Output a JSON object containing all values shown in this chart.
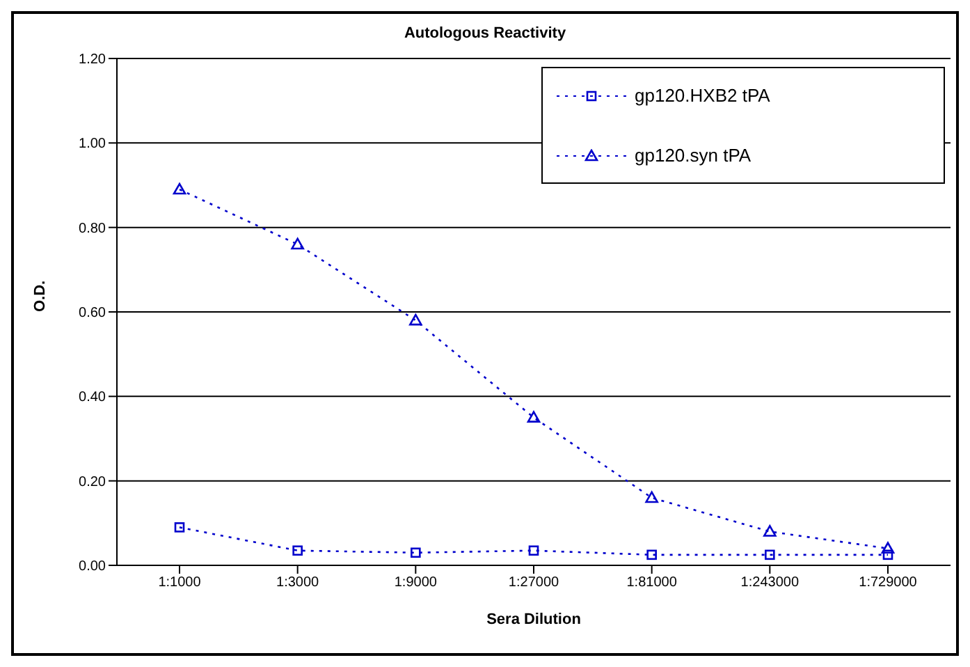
{
  "chart_data": {
    "type": "line",
    "title": "Autologous Reactivity",
    "xlabel": "Sera Dilution",
    "ylabel": "O.D.",
    "categories": [
      "1:1000",
      "1:3000",
      "1:9000",
      "1:27000",
      "1:81000",
      "1:243000",
      "1:729000"
    ],
    "series": [
      {
        "name": "gp120.HXB2 tPA",
        "color": "#0000cc",
        "marker": "square",
        "values": [
          0.09,
          0.035,
          0.03,
          0.035,
          0.025,
          0.025,
          0.025
        ]
      },
      {
        "name": "gp120.syn tPA",
        "color": "#0000cc",
        "marker": "triangle",
        "values": [
          0.89,
          0.76,
          0.58,
          0.35,
          0.16,
          0.08,
          0.04
        ]
      }
    ],
    "ylim": [
      0,
      1.2
    ],
    "yticks": [
      {
        "value": 0,
        "label": "0.00"
      },
      {
        "value": 0.2,
        "label": "0.20"
      },
      {
        "value": 0.4,
        "label": "0.40"
      },
      {
        "value": 0.6,
        "label": "0.60"
      },
      {
        "value": 0.8,
        "label": "0.80"
      },
      {
        "value": 1.0,
        "label": "1.00"
      },
      {
        "value": 1.2,
        "label": "1.20"
      }
    ],
    "grid": "y",
    "legend": "top right",
    "line_style": "dotted"
  }
}
